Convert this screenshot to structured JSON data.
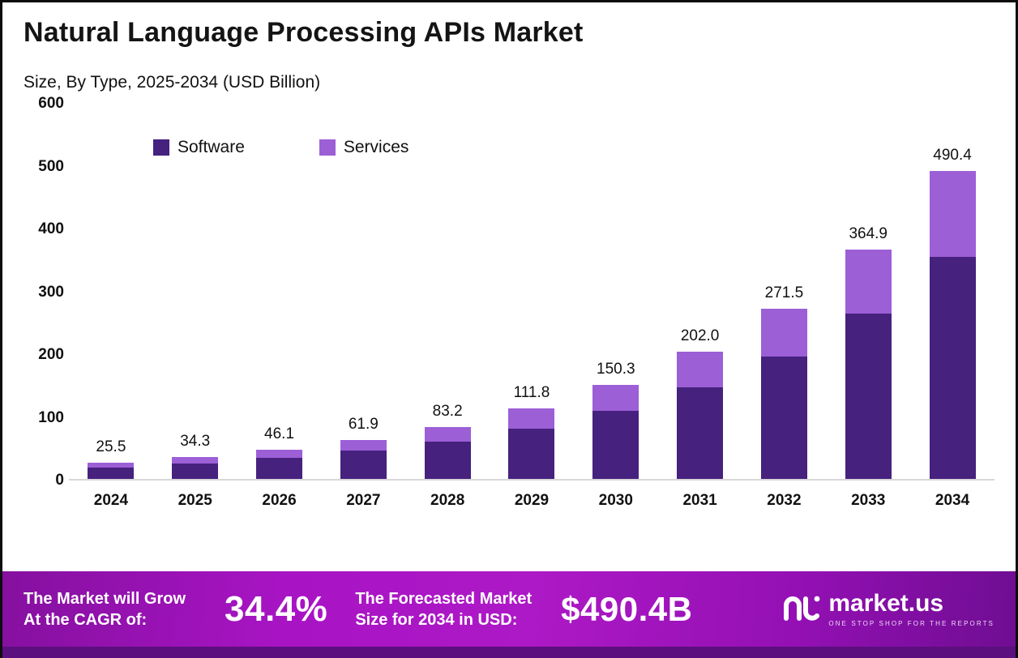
{
  "header": {
    "title": "Natural Language Processing APIs Market",
    "subtitle": "Size, By Type, 2025-2034 (USD Billion)"
  },
  "chart_data": {
    "type": "bar",
    "stacked": true,
    "title": "Natural Language Processing APIs Market",
    "subtitle": "Size, By Type, 2025-2034 (USD Billion)",
    "unit": "USD Billion",
    "categories": [
      "2024",
      "2025",
      "2026",
      "2027",
      "2028",
      "2029",
      "2030",
      "2031",
      "2032",
      "2033",
      "2034"
    ],
    "series": [
      {
        "name": "Software",
        "color": "#46217e",
        "values": [
          18.4,
          24.7,
          33.2,
          44.6,
          59.9,
          80.5,
          108.2,
          145.4,
          195.5,
          262.7,
          353.1
        ]
      },
      {
        "name": "Services",
        "color": "#9c5fd6",
        "values": [
          7.1,
          9.6,
          12.9,
          17.3,
          23.3,
          31.3,
          42.1,
          56.6,
          76.0,
          102.2,
          137.3
        ]
      }
    ],
    "totals": [
      25.5,
      34.3,
      46.1,
      61.9,
      83.2,
      111.8,
      150.3,
      202.0,
      271.5,
      364.9,
      490.4
    ],
    "total_labels": [
      "25.5",
      "34.3",
      "46.1",
      "61.9",
      "83.2",
      "111.8",
      "150.3",
      "202.0",
      "271.5",
      "364.9",
      "490.4"
    ],
    "ylim": [
      0,
      600
    ],
    "yticks": [
      0,
      100,
      200,
      300,
      400,
      500,
      600
    ],
    "grid": false,
    "legend_position": "top-left-inside"
  },
  "footer": {
    "cagr_line1": "The Market will Grow",
    "cagr_line2": "At the CAGR of:",
    "cagr_value": "34.4%",
    "forecast_line1": "The Forecasted Market",
    "forecast_line2": "Size for 2034 in USD:",
    "forecast_value": "$490.4B",
    "brand_name": "market.us",
    "brand_tagline": "ONE STOP SHOP FOR THE REPORTS"
  },
  "colors": {
    "software": "#46217e",
    "services": "#9c5fd6",
    "footer_gradient_mid": "#ad19c6",
    "footer_strip": "#5c0f7e"
  }
}
